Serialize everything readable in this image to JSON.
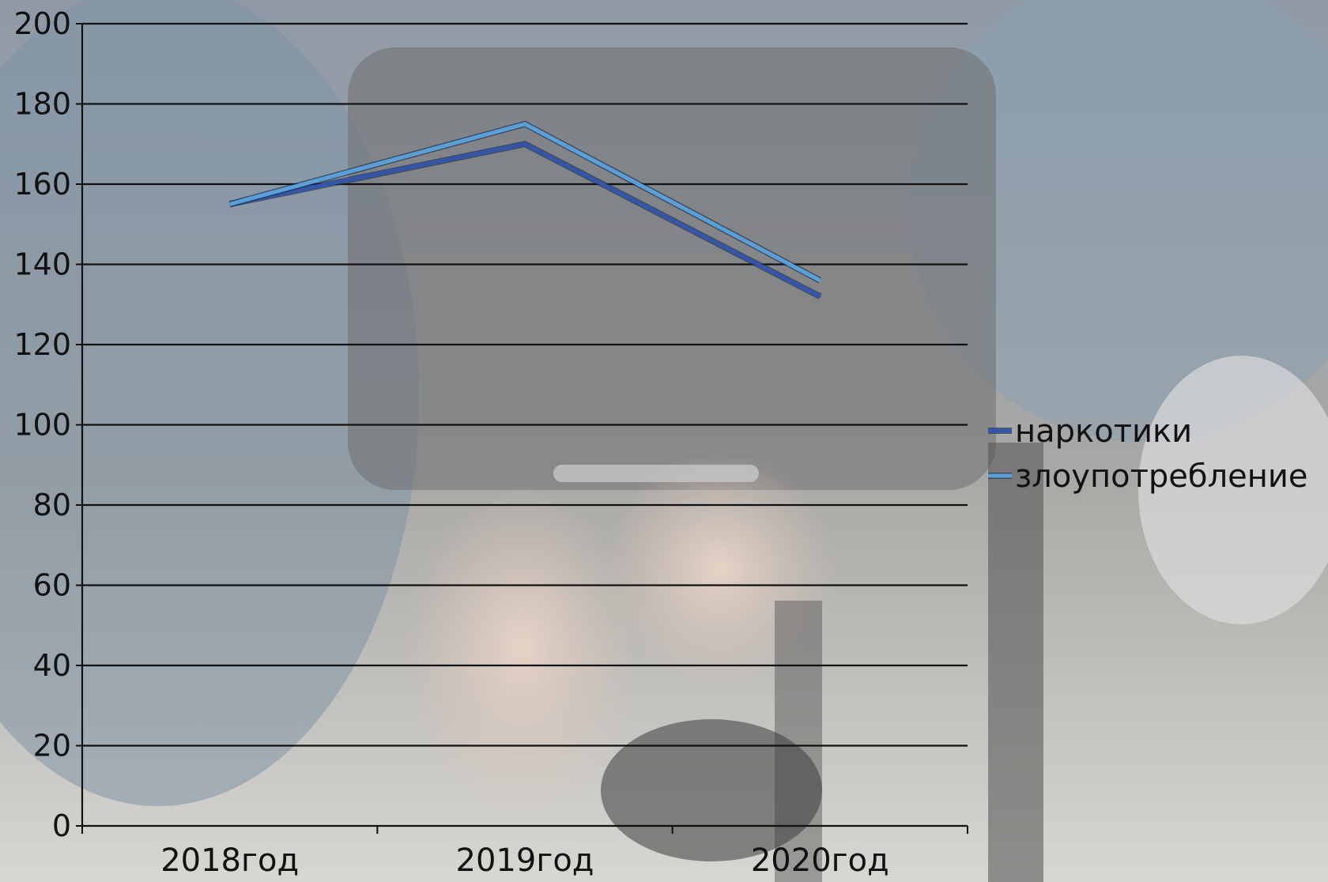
{
  "chart_data": {
    "type": "line",
    "categories": [
      "2018год",
      "2019год",
      "2020год"
    ],
    "series": [
      {
        "name": "наркотики",
        "values": [
          155,
          170,
          132
        ],
        "color": "#3355aa"
      },
      {
        "name": "злоупотребление",
        "values": [
          155,
          175,
          136
        ],
        "color": "#5aa0d8"
      }
    ],
    "ylim": [
      0,
      200
    ],
    "yticks": [
      0,
      20,
      40,
      60,
      80,
      100,
      120,
      140,
      160,
      180,
      200
    ],
    "grid": true,
    "legend_position": "right",
    "background": "photo of handcuffed hands (muted)"
  }
}
